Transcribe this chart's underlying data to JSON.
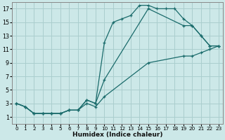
{
  "xlabel": "Humidex (Indice chaleur)",
  "bg_color": "#cce8e8",
  "grid_color": "#aacece",
  "line_color": "#1a6b6b",
  "xlim": [
    -0.5,
    23.5
  ],
  "ylim": [
    0,
    18
  ],
  "xticks": [
    0,
    1,
    2,
    3,
    4,
    5,
    6,
    7,
    8,
    9,
    10,
    11,
    12,
    13,
    14,
    15,
    16,
    17,
    18,
    19,
    20,
    21,
    22,
    23
  ],
  "yticks": [
    1,
    3,
    5,
    7,
    9,
    11,
    13,
    15,
    17
  ],
  "line1_x": [
    0,
    1,
    2,
    3,
    4,
    5,
    6,
    7,
    8,
    9,
    10,
    11,
    12,
    13,
    14,
    15,
    16,
    17,
    18,
    19,
    20,
    21,
    22,
    23
  ],
  "line1_y": [
    3,
    2.5,
    1.5,
    1.5,
    1.5,
    1.5,
    2,
    2,
    3.5,
    3,
    12,
    15,
    15.5,
    16,
    17.5,
    17.5,
    17,
    17,
    17,
    15.5,
    14.5,
    13,
    11.5,
    11.5
  ],
  "line2_x": [
    0,
    1,
    2,
    3,
    4,
    5,
    6,
    7,
    8,
    9,
    10,
    15,
    19,
    20,
    21,
    22,
    23
  ],
  "line2_y": [
    3,
    2.5,
    1.5,
    1.5,
    1.5,
    1.5,
    2,
    2,
    3.5,
    3,
    6.5,
    17,
    14.5,
    14.5,
    13,
    11.5,
    11.5
  ],
  "line3_x": [
    0,
    1,
    2,
    3,
    4,
    5,
    6,
    7,
    8,
    9,
    10,
    15,
    19,
    20,
    21,
    22,
    23
  ],
  "line3_y": [
    3,
    2.5,
    1.5,
    1.5,
    1.5,
    1.5,
    2,
    2,
    3,
    2.5,
    4,
    9,
    10,
    10,
    10.5,
    11,
    11.5
  ]
}
